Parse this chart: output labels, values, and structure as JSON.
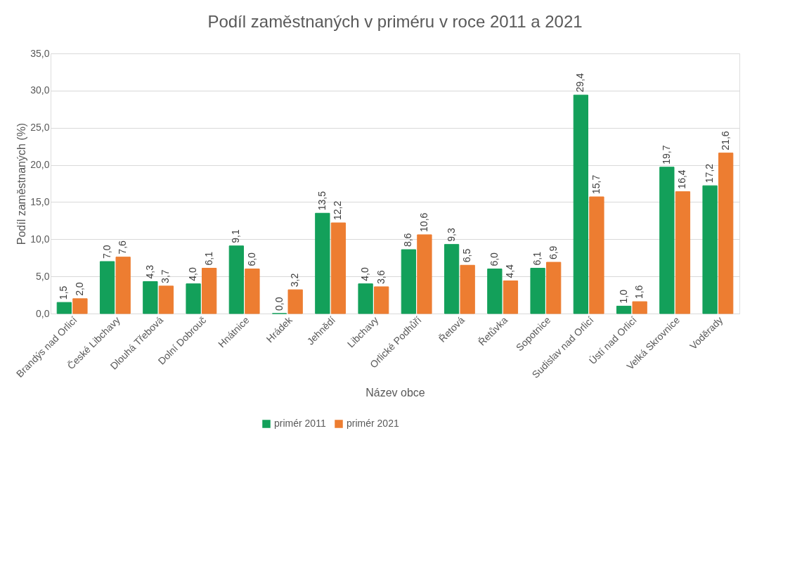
{
  "chart_data": {
    "type": "bar",
    "title": "Podíl zaměstnaných v priméru v roce 2011 a 2021",
    "xlabel": "Název obce",
    "ylabel": "Podíl zaměstnaných (%)",
    "categories": [
      "Brandýs nad Orlicí",
      "České Libchavy",
      "Dlouhá Třebová",
      "Dolní Dobrouč",
      "Hnátnice",
      "Hrádek",
      "Jehnědí",
      "Libchavy",
      "Orlické Podhůří",
      "Řetová",
      "Řetůvka",
      "Sopotnice",
      "Sudislav nad Orlicí",
      "Ústí nad Orlicí",
      "Velká Skrovnice",
      "Voděrady"
    ],
    "series": [
      {
        "name": "primér 2011",
        "color": "#13a05a",
        "values": [
          1.5,
          7.0,
          4.3,
          4.0,
          9.1,
          0.0,
          13.5,
          4.0,
          8.6,
          9.3,
          6.0,
          6.1,
          29.4,
          1.0,
          19.7,
          17.2
        ],
        "value_labels": [
          "1,5",
          "7,0",
          "4,3",
          "4,0",
          "9,1",
          "0,0",
          "13,5",
          "4,0",
          "8,6",
          "9,3",
          "6,0",
          "6,1",
          "29,4",
          "1,0",
          "19,7",
          "17,2"
        ]
      },
      {
        "name": "primér 2021",
        "color": "#ed7d31",
        "values": [
          2.0,
          7.6,
          3.7,
          6.1,
          6.0,
          3.2,
          12.2,
          3.6,
          10.6,
          6.5,
          4.4,
          6.9,
          15.7,
          1.6,
          16.4,
          21.6
        ],
        "value_labels": [
          "2,0",
          "7,6",
          "3,7",
          "6,1",
          "6,0",
          "3,2",
          "12,2",
          "3,6",
          "10,6",
          "6,5",
          "4,4",
          "6,9",
          "15,7",
          "1,6",
          "16,4",
          "21,6"
        ]
      }
    ],
    "ylim": [
      0,
      35
    ],
    "yticks": [
      {
        "value": 0,
        "label": "0,0"
      },
      {
        "value": 5,
        "label": "5,0"
      },
      {
        "value": 10,
        "label": "10,0"
      },
      {
        "value": 15,
        "label": "15,0"
      },
      {
        "value": 20,
        "label": "20,0"
      },
      {
        "value": 25,
        "label": "25,0"
      },
      {
        "value": 30,
        "label": "30,0"
      },
      {
        "value": 35,
        "label": "35,0"
      }
    ],
    "grid": "y",
    "legend": "bottom"
  }
}
